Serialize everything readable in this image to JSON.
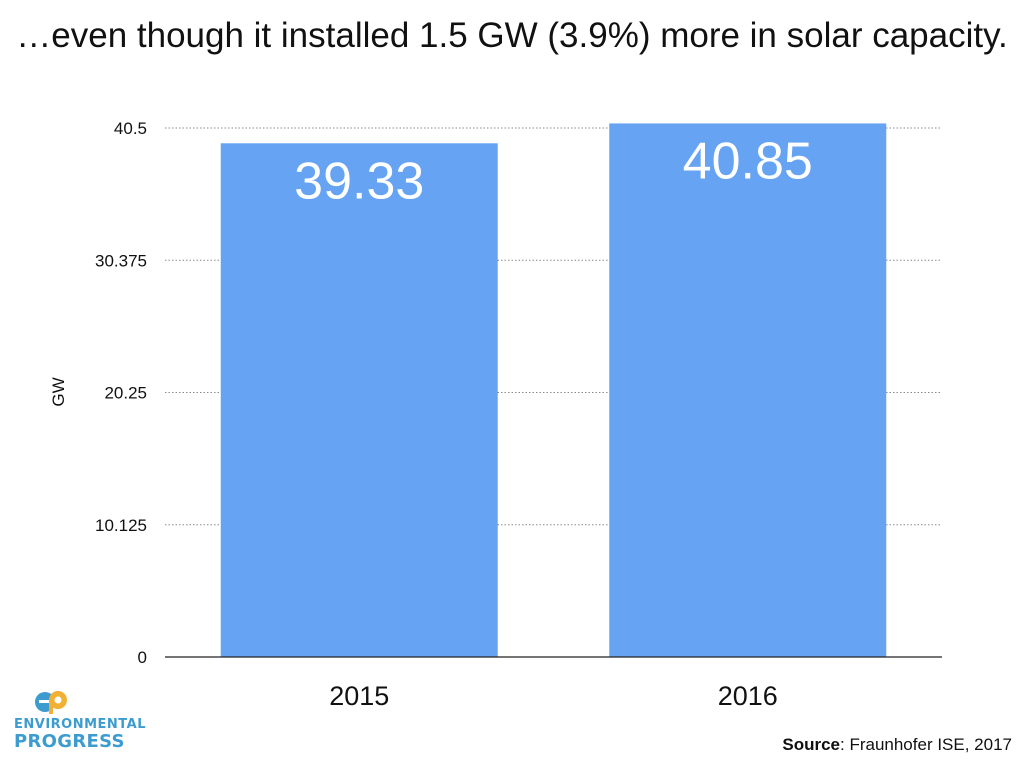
{
  "title": "…even though it installed 1.5 GW (3.9%) more in solar capacity.",
  "chart_data": {
    "type": "bar",
    "categories": [
      "2015",
      "2016"
    ],
    "values": [
      39.33,
      40.85
    ],
    "data_labels": [
      "39.33",
      "40.85"
    ],
    "ylabel": "GW",
    "xlabel": "",
    "ylim": [
      0,
      40.5
    ],
    "yticks": [
      0,
      10.125,
      20.25,
      30.375,
      40.5
    ],
    "ytick_labels": [
      "0",
      "10.125",
      "20.25",
      "30.375",
      "40.5"
    ],
    "grid": true,
    "bar_color": "#66a3f2"
  },
  "logo": {
    "line1": "ENVIRONMENTAL",
    "line2": "PROGRESS",
    "color": "#3d9ccf",
    "accent": "#f2b134"
  },
  "source": {
    "label": "Source",
    "text": ": Fraunhofer ISE, 2017"
  }
}
